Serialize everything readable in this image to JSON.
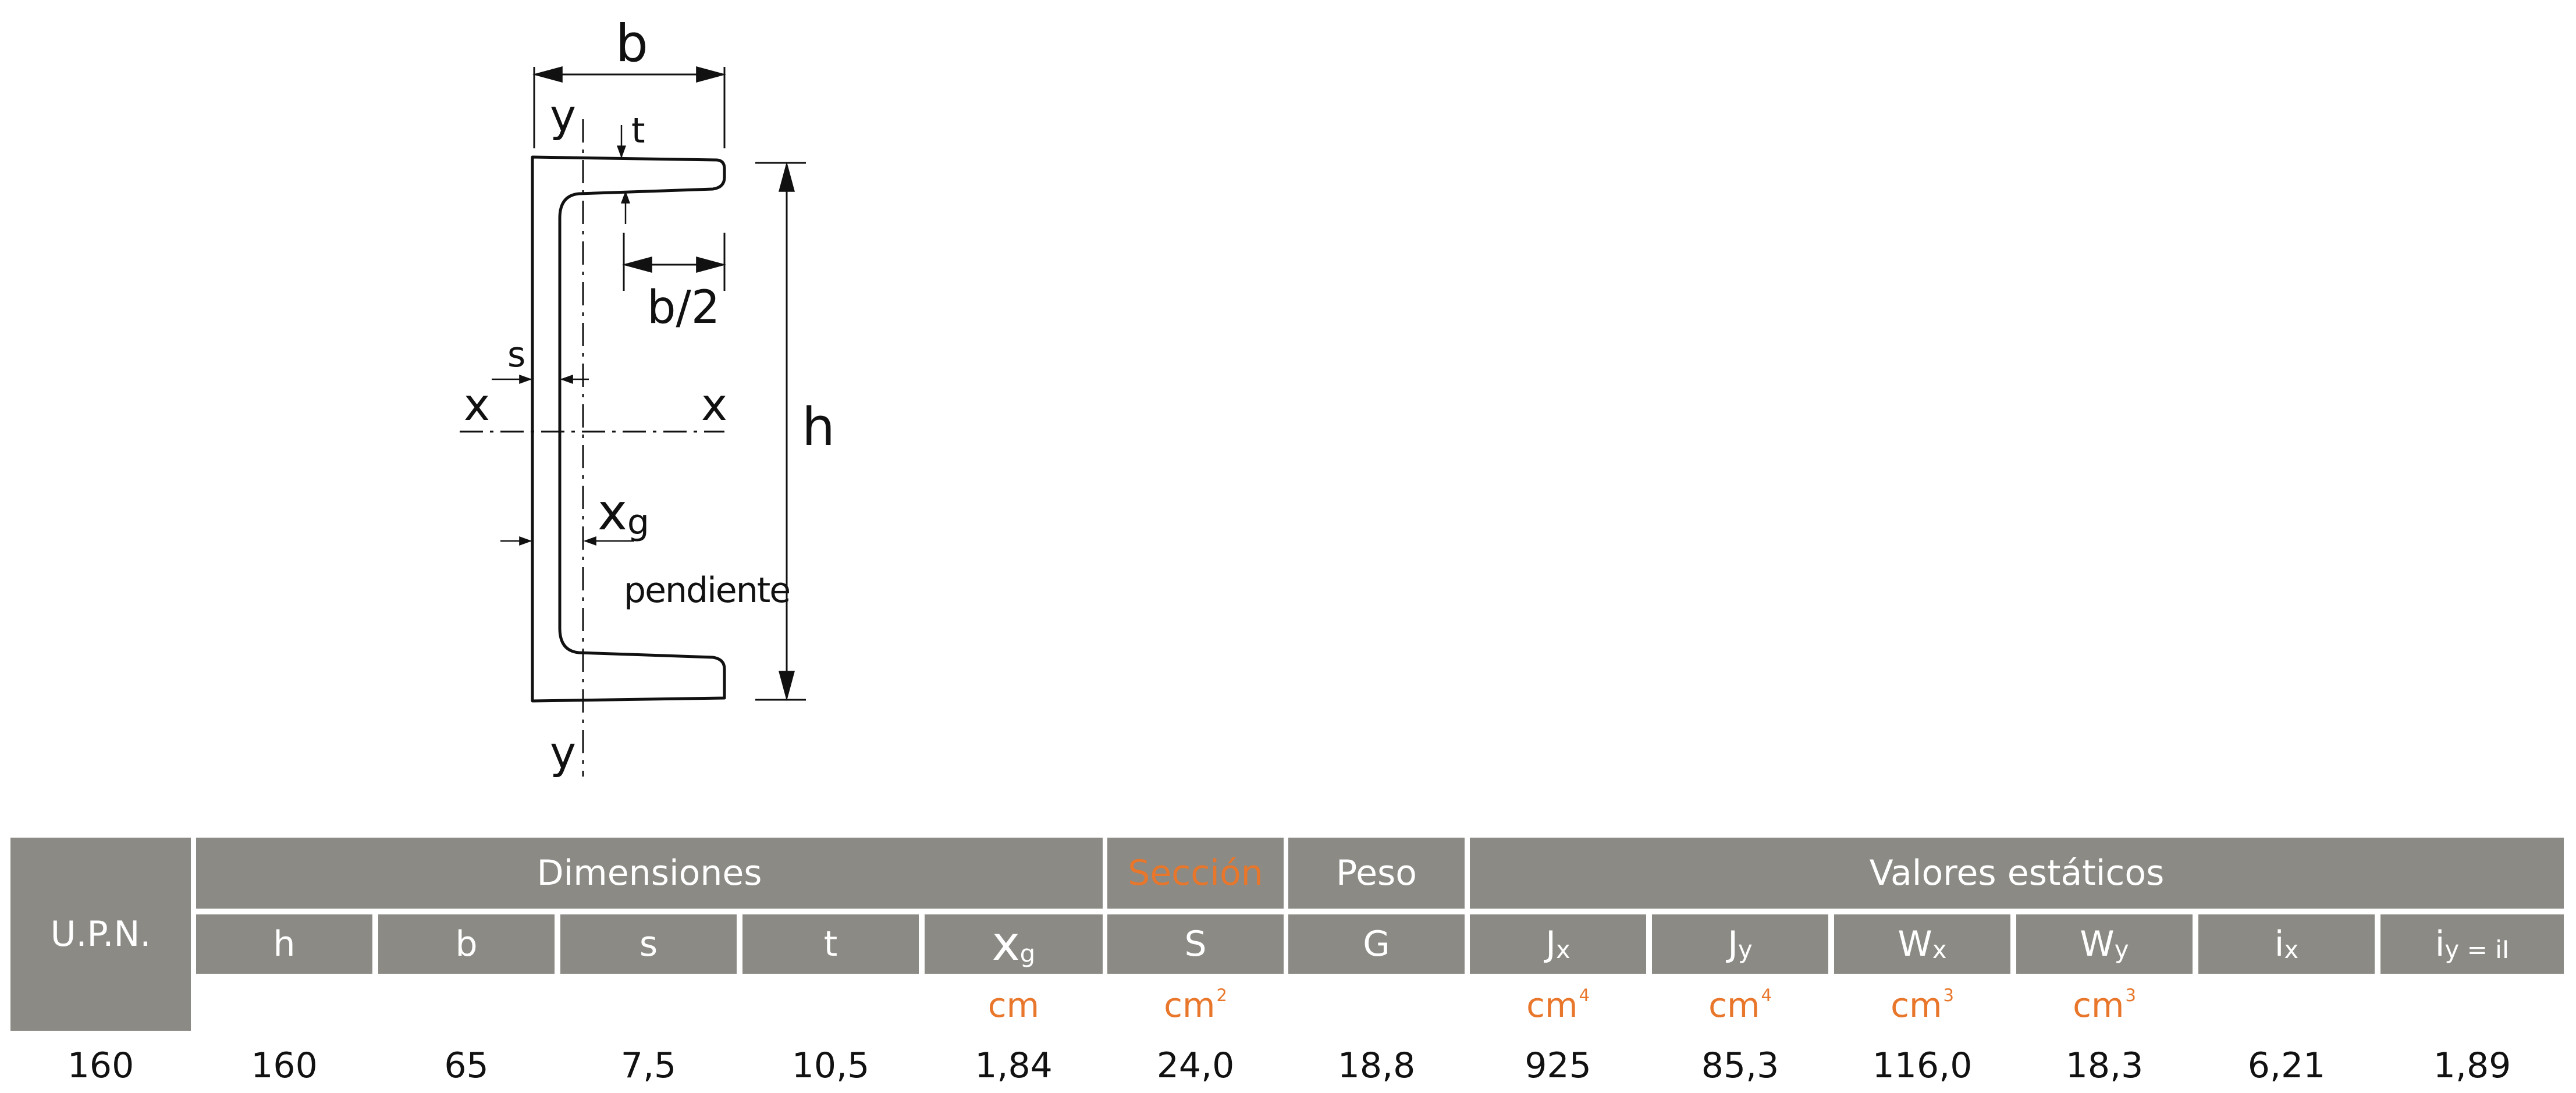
{
  "diagram": {
    "labels": {
      "b": "b",
      "y_top": "y",
      "t": "t",
      "b_half": "b/2",
      "s": "s",
      "x_left": "x",
      "x_right": "x",
      "h": "h",
      "xg_main": "x",
      "xg_sub": "g",
      "slope": "pendiente",
      "y_bottom": "y"
    }
  },
  "table": {
    "row_header": "U.P.N.",
    "groups": {
      "dimensiones": "Dimensiones",
      "seccion": "Sección",
      "peso": "Peso",
      "valores": "Valores estáticos"
    },
    "columns": {
      "h": "h",
      "b": "b",
      "s": "s",
      "t": "t",
      "xg_main": "x",
      "xg_sub": "g",
      "S": "S",
      "G": "G",
      "jx_main": "J",
      "jx_sub": "x",
      "jy_main": "J",
      "jy_sub": "y",
      "wx_main": "W",
      "wx_sub": "x",
      "wy_main": "W",
      "wy_sub": "y",
      "ix_main": "i",
      "ix_sub": "x",
      "iy_main": "i",
      "iy_sub": "y = iI"
    },
    "units": {
      "xg": "cm",
      "S_base": "cm",
      "S_exp": "2",
      "jx_base": "cm",
      "jx_exp": "4",
      "jy_base": "cm",
      "jy_exp": "4",
      "wx_base": "cm",
      "wx_exp": "3",
      "wy_base": "cm",
      "wy_exp": "3"
    },
    "rows": [
      {
        "upn": "160",
        "h": "160",
        "b": "65",
        "s": "7,5",
        "t": "10,5",
        "xg": "1,84",
        "S": "24,0",
        "G": "18,8",
        "jx": "925",
        "jy": "85,3",
        "wx": "116,0",
        "wy": "18,3",
        "ix": "6,21",
        "iy": "1,89"
      }
    ]
  }
}
